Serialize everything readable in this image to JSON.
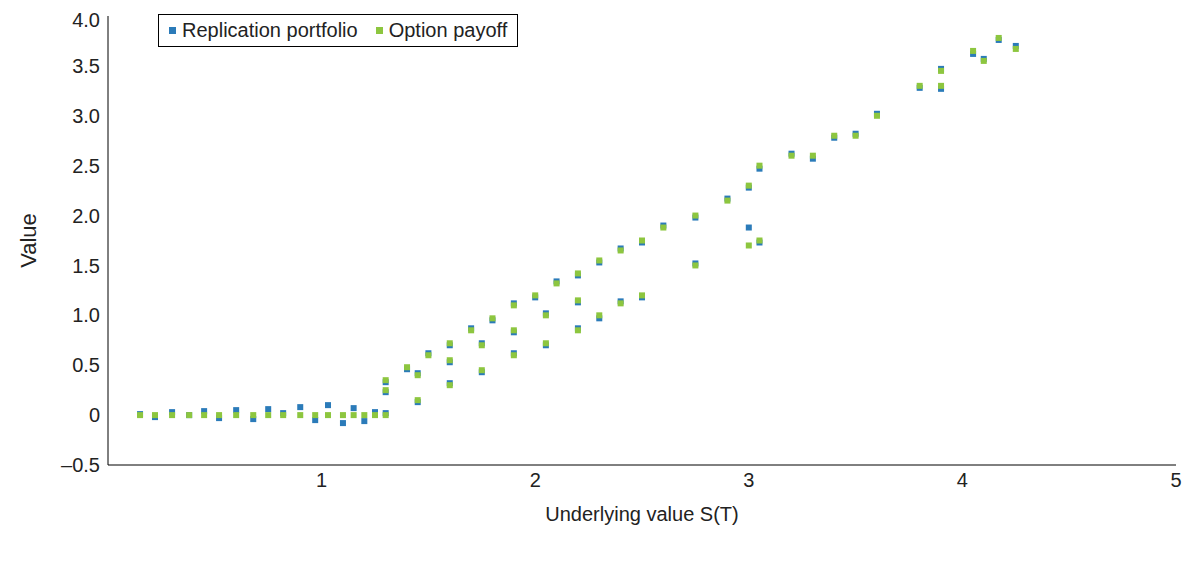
{
  "chart_data": {
    "type": "scatter",
    "x_label": "Underlying value S(T)",
    "y_label": "Value",
    "xlim": [
      0,
      5
    ],
    "xticks": [
      1,
      2,
      3,
      4,
      5
    ],
    "ylim": [
      -0.5,
      4
    ],
    "yticks": [
      {
        "value": -0.5,
        "label": "–0.5"
      },
      0,
      0.5,
      {
        "value": 1,
        "label": "1.0"
      },
      1.5,
      {
        "value": 2,
        "label": "2.0"
      },
      2.5,
      {
        "value": 3,
        "label": "3.0"
      },
      3.5,
      {
        "value": 4,
        "label": "4.0"
      }
    ],
    "grid": false,
    "legend": "upper left",
    "marker": "square",
    "x": [
      0.15,
      0.22,
      0.3,
      0.38,
      0.45,
      0.52,
      0.6,
      0.68,
      0.75,
      0.82,
      0.9,
      0.97,
      1.03,
      1.1,
      1.15,
      1.2,
      1.25,
      1.3,
      1.4,
      1.5,
      1.6,
      1.7,
      1.8,
      1.9,
      2.0,
      2.1,
      2.2,
      1.3,
      1.45,
      1.6,
      1.75,
      1.9,
      2.05,
      2.2,
      1.3,
      1.45,
      1.6,
      1.75,
      1.9,
      2.05,
      2.2,
      2.3,
      2.4,
      2.5,
      2.6,
      2.75,
      2.9,
      3.0,
      3.05,
      3.2,
      3.4,
      3.6,
      3.8,
      3.9,
      4.05,
      4.17,
      4.25,
      2.3,
      2.4,
      2.5,
      2.75,
      3.0,
      3.05,
      3.3,
      3.5,
      3.9,
      4.1
    ],
    "series": [
      {
        "name": "Replication portfolio",
        "color": "#2b7bb9",
        "values": [
          0.01,
          -0.02,
          0.03,
          0.0,
          0.04,
          -0.03,
          0.05,
          -0.04,
          0.06,
          0.02,
          0.08,
          -0.05,
          0.1,
          -0.08,
          0.07,
          -0.06,
          0.03,
          0.33,
          0.46,
          0.62,
          0.7,
          0.87,
          0.95,
          1.12,
          1.18,
          1.34,
          1.4,
          0.23,
          0.42,
          0.53,
          0.72,
          0.83,
          1.02,
          1.13,
          0.02,
          0.13,
          0.32,
          0.43,
          0.62,
          0.7,
          0.87,
          1.53,
          1.67,
          1.73,
          1.9,
          1.98,
          2.17,
          2.28,
          2.47,
          2.62,
          2.78,
          3.02,
          3.28,
          3.47,
          3.62,
          3.76,
          3.7,
          0.97,
          1.14,
          1.18,
          1.52,
          1.88,
          1.73,
          2.57,
          2.82,
          3.27,
          3.57
        ]
      },
      {
        "name": "Option payoff",
        "color": "#8dc63f",
        "values": [
          0,
          0,
          0,
          0,
          0,
          0,
          0,
          0,
          0,
          0,
          0,
          0,
          0,
          0,
          0,
          0,
          0,
          0.35,
          0.48,
          0.6,
          0.72,
          0.85,
          0.97,
          1.1,
          1.2,
          1.32,
          1.42,
          0.25,
          0.4,
          0.55,
          0.7,
          0.85,
          1.0,
          1.15,
          0.0,
          0.15,
          0.3,
          0.45,
          0.6,
          0.72,
          0.85,
          1.55,
          1.65,
          1.75,
          1.88,
          2.0,
          2.15,
          2.3,
          2.5,
          2.6,
          2.8,
          3.0,
          3.3,
          3.45,
          3.65,
          3.78,
          3.67,
          1.0,
          1.12,
          1.2,
          1.5,
          1.7,
          1.75,
          2.6,
          2.8,
          3.3,
          3.55
        ]
      }
    ]
  }
}
